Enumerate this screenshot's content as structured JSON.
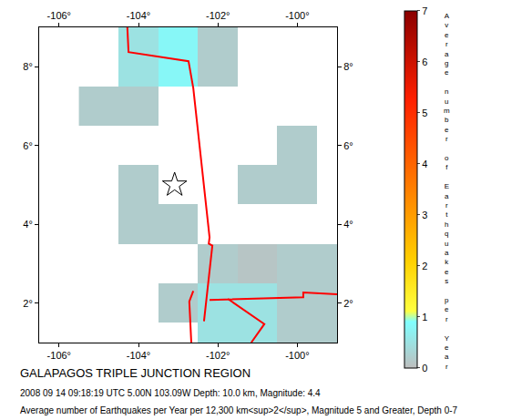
{
  "chart_data": {
    "type": "heatmap",
    "title": "GALAPAGOS TRIPLE JUNCTION REGION",
    "subtitle": "2008 09 14 09:18:19 UTC 5.00N 103.09W Depth: 10.0 km, Magnitude: 4.4",
    "caption": "Average number of Earthquakes per Year per 12,300 km<sup>2</sup>, Magnitude 5 and Greater, Depth 0-7",
    "colorbar_title": "Average number of Earthquakes per Year",
    "x": [
      -105,
      -104,
      -103,
      -102,
      -101,
      -100,
      -99
    ],
    "y": [
      1,
      2,
      3,
      4,
      5,
      6,
      7,
      8,
      9
    ],
    "z": [
      [
        null,
        null,
        null,
        0.5,
        0.5,
        0.2,
        0.2
      ],
      [
        null,
        null,
        0.2,
        0.5,
        0.5,
        0.2,
        0.2
      ],
      [
        null,
        null,
        null,
        0.2,
        0.1,
        0.2,
        0.2
      ],
      [
        null,
        0.2,
        0.2,
        null,
        null,
        null,
        null
      ],
      [
        null,
        0.2,
        null,
        null,
        0.2,
        0.2,
        null
      ],
      [
        null,
        null,
        null,
        null,
        null,
        0.2,
        null
      ],
      [
        0.2,
        0.2,
        null,
        null,
        null,
        null,
        null
      ],
      [
        null,
        0.5,
        0.8,
        0.2,
        null,
        null,
        null
      ],
      [
        null,
        0.5,
        0.8,
        0.2,
        null,
        null,
        null
      ]
    ],
    "zlim": [
      0,
      7
    ],
    "zticks": [
      0,
      1,
      2,
      3,
      4,
      5,
      6,
      7
    ],
    "xlim": [
      -106.5,
      -99
    ],
    "ylim": [
      1,
      9
    ],
    "xticks": [
      {
        "value": -106,
        "label": "-106°"
      },
      {
        "value": -104,
        "label": "-104°"
      },
      {
        "value": -102,
        "label": "-102°"
      },
      {
        "value": -100,
        "label": "-100°"
      }
    ],
    "yticks": [
      {
        "value": 2,
        "label": "2°"
      },
      {
        "value": 4,
        "label": "4°"
      },
      {
        "value": 6,
        "label": "6°"
      },
      {
        "value": 8,
        "label": "8°"
      }
    ],
    "grid": false,
    "boundaries": {
      "color": "#ff0000",
      "lines": [
        {
          "lon": [
            -104.28,
            -104.25,
            -102.74,
            -102.62,
            -102.21,
            -102.23,
            -102.14,
            -102.35
          ],
          "lat": [
            9.0,
            8.37,
            8.14,
            7.46,
            3.67,
            3.51,
            3.46,
            1.54
          ]
        },
        {
          "lon": [
            -102.62,
            -102.72,
            -102.67
          ],
          "lat": [
            2.31,
            2.04,
            1.0
          ]
        },
        {
          "lon": [
            -102.21,
            -99.85,
            -99.85,
            -98.95
          ],
          "lat": [
            2.08,
            2.15,
            2.27,
            2.22
          ]
        },
        {
          "lon": [
            -101.75,
            -100.83,
            -101.16
          ],
          "lat": [
            2.11,
            1.47,
            1.0
          ]
        }
      ]
    },
    "epicenter": {
      "lon": -103.09,
      "lat": 5.0,
      "marker": "star-open",
      "color": "#000000"
    }
  }
}
